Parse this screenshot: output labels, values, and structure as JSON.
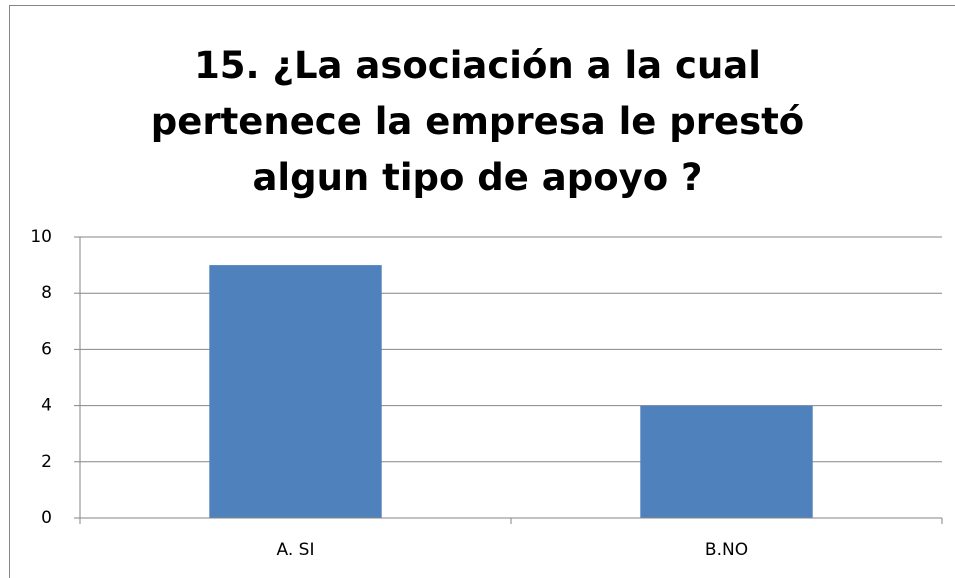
{
  "chart_data": {
    "type": "bar",
    "title": "15. ¿La asociación a la cual pertenece la empresa le prestó algun tipo de apoyo ?",
    "categories": [
      "A. SI",
      "B.NO"
    ],
    "values": [
      9,
      4
    ],
    "color": "#4f81bd",
    "ylim": [
      0,
      10
    ],
    "yticks": [
      0,
      2,
      4,
      6,
      8,
      10
    ],
    "grid": true
  }
}
